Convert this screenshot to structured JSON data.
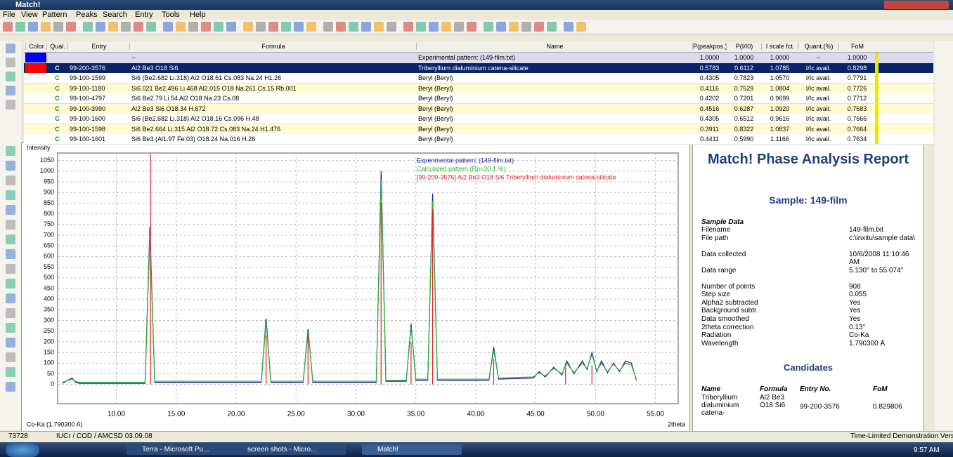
{
  "window": {
    "title": "Match!"
  },
  "menu": [
    "File",
    "View",
    "Pattern",
    "Peaks",
    "Search",
    "Entry",
    "Tools",
    "Help"
  ],
  "table": {
    "columns": [
      "Color",
      "Qual.",
      "Entry",
      "Formula",
      "Name",
      "P(peakpos.)",
      "P(I/I0)",
      "I scale fct.",
      "Quant.(%)",
      "FoM"
    ],
    "rows": [
      [
        "#0000ff",
        null,
        null,
        "--",
        "Experimental pattern: (149-film.txt)",
        "1.0000",
        "1.0000",
        "1.0000",
        "--",
        "1.0000"
      ],
      [
        "#ff0000",
        "C",
        "99-200-3576",
        "Al2 Be3 O18 Si6",
        "Triberyllium dialuminium catena-silicate",
        "0.5783",
        "0.6112",
        "1.0785",
        "I/Ic avail.",
        "0.8298"
      ],
      [
        null,
        "C",
        "99-100-1599",
        "Si6 (Be2.682 Li.318) Al2 O18.61 Cs.083 Na.24 H1.26",
        "Beryl (Beryl)",
        "0.4305",
        "0.7823",
        "1.0570",
        "I/Ic avail.",
        "0.7791"
      ],
      [
        null,
        "C",
        "99-100-1180",
        "Si6.021 Be2.496 Li.468 Al2.015 O18 Na.261 Cs.15 Rb.001",
        "Beryl (Beryl)",
        "0.4116",
        "0.7529",
        "1.0804",
        "I/Ic avail.",
        "0.7726"
      ],
      [
        null,
        "C",
        "99-100-4797",
        "Si6 Be2.79 Li.54 Al2 O18 Na.23 Cs.08",
        "Beryl (Beryl)",
        "0.4202",
        "0.7201",
        "0.9699",
        "I/Ic avail.",
        "0.7712"
      ],
      [
        null,
        "C",
        "99-100-3990",
        "Al2 Be3 Si6 O18.34 H.672",
        "Beryl (Beryl)",
        "0.4516",
        "0.6287",
        "1.0920",
        "I/Ic avail.",
        "0.7683"
      ],
      [
        null,
        "C",
        "99-100-1600",
        "Si6 (Be2.682 Li.318) Al2 O18.16 Cs.096 H.48",
        "Beryl (Beryl)",
        "0.4305",
        "0.6512",
        "0.9616",
        "I/Ic avail.",
        "0.7666"
      ],
      [
        null,
        "C",
        "99-100-1598",
        "Si6 Be2.664 Li.315 Al2 O18.72 Cs.083 Na.24 H1.476",
        "Beryl (Beryl)",
        "0.3911",
        "0.8322",
        "1.0837",
        "I/Ic avail.",
        "0.7664"
      ],
      [
        null,
        "C",
        "99-100-1601",
        "Si6 Be3 (Al1.97 Fe.03) O18.24 Na.016 H.26",
        "Beryl (Beryl)",
        "0.4411",
        "0.5990",
        "1.1166",
        "I/Ic avail.",
        "0.7634"
      ]
    ]
  },
  "chart_data": {
    "type": "line",
    "y_label": "Intensity",
    "x_label": "2theta",
    "wavelength_label": "Co-Ka (1.790300 A)",
    "xlim": [
      5.1,
      56.9
    ],
    "ylim": [
      -90,
      1085
    ],
    "xticks": [
      {
        "value": 10,
        "label": "10.00"
      },
      {
        "value": 15,
        "label": "15.00"
      },
      {
        "value": 20,
        "label": "20.00"
      },
      {
        "value": 25,
        "label": "25.00"
      },
      {
        "value": 30,
        "label": "30.00"
      },
      {
        "value": 35,
        "label": "35.00"
      },
      {
        "value": 40,
        "label": "40.00"
      },
      {
        "value": 45,
        "label": "45.00"
      },
      {
        "value": 50,
        "label": "50.00"
      },
      {
        "value": 55,
        "label": "55.00"
      }
    ],
    "yticks": [
      0,
      50,
      100,
      150,
      200,
      250,
      300,
      350,
      400,
      450,
      500,
      550,
      600,
      650,
      700,
      750,
      800,
      850,
      900,
      950,
      1000,
      1050
    ],
    "grid": true,
    "x": [
      5.5,
      6.3,
      6.6,
      6.9,
      12.4,
      12.8,
      13.2,
      22.1,
      22.5,
      22.9,
      25.6,
      26.0,
      26.4,
      31.7,
      32.1,
      32.5,
      34.2,
      34.6,
      35.0,
      36.0,
      36.4,
      36.8,
      41.1,
      41.5,
      41.9,
      44.8,
      45.3,
      45.8,
      46.5,
      47.2,
      47.6,
      48.2,
      48.9,
      49.3,
      49.7,
      50.1,
      50.5,
      51.0,
      51.5,
      52.0,
      52.5,
      53.0,
      53.4
    ],
    "series": [
      {
        "name": "Experimental pattern: (149-film.txt)",
        "color": "#1a1aa0",
        "values": [
          5,
          30,
          10,
          5,
          5,
          740,
          10,
          10,
          310,
          10,
          10,
          260,
          10,
          10,
          1000,
          15,
          15,
          285,
          20,
          20,
          895,
          20,
          20,
          175,
          25,
          30,
          60,
          35,
          80,
          45,
          110,
          50,
          110,
          70,
          150,
          60,
          110,
          55,
          100,
          60,
          110,
          100,
          20
        ]
      },
      {
        "name": "Calculated pattern (Rp=30.1 %)",
        "color": "#2db52d",
        "values": [
          10,
          25,
          15,
          10,
          10,
          700,
          15,
          15,
          290,
          15,
          15,
          245,
          15,
          15,
          960,
          20,
          20,
          270,
          25,
          25,
          860,
          25,
          25,
          160,
          30,
          35,
          55,
          40,
          75,
          50,
          100,
          55,
          100,
          75,
          140,
          65,
          100,
          60,
          95,
          65,
          100,
          90,
          25
        ]
      },
      {
        "name": "[99-200-3576] Al2 Be3 O18 Si6 Triberyllium dialuminium catena-silicate",
        "color": "#e02020",
        "type": "stick",
        "x": [
          12.85,
          22.5,
          26.0,
          32.1,
          34.6,
          36.4,
          41.5,
          47.5,
          49.7
        ],
        "values": [
          1085,
          230,
          230,
          850,
          200,
          820,
          120,
          80,
          90
        ]
      }
    ]
  },
  "report": {
    "title": "Match! Phase Analysis Report",
    "sample": "Sample: 149-film",
    "section": "Sample Data",
    "rows": [
      [
        "Filename",
        "149-film.txt"
      ],
      [
        "File path",
        "c:\\inxitu\\sample data\\"
      ],
      [
        "Data collected",
        "10/6/2008 11:10:46 AM"
      ],
      [
        "Data range",
        "5.130° to 55.074°"
      ],
      [
        "Number of points",
        "908"
      ],
      [
        "Step size",
        "0.055"
      ],
      [
        "Alpha2 subtracted",
        "Yes"
      ],
      [
        "Background subtr.",
        "Yes"
      ],
      [
        "Data smoothed",
        "Yes"
      ],
      [
        "2theta correction",
        "0.13°"
      ],
      [
        "Radiation",
        "Co-Ka"
      ],
      [
        "Wavelength",
        "1.790300 Å"
      ]
    ],
    "candidates_title": "Candidates",
    "candidate_columns": [
      "Name",
      "Formula",
      "Entry No.",
      "FoM"
    ],
    "candidate_row": [
      "Triberyllium dialuminium catena-",
      "Al2 Be3 O18 Si6",
      "99-200-3576",
      "0.829806"
    ]
  },
  "status": {
    "count": "73728",
    "database": "IUCr / COD / AMCSD 03.09.08",
    "license": "Time-Limited Demonstration Version"
  },
  "taskbar": {
    "items": [
      "Terra - Microsoft Pu...",
      "screen shots - Micro...",
      "Match!"
    ],
    "clock": "9:57 AM"
  }
}
